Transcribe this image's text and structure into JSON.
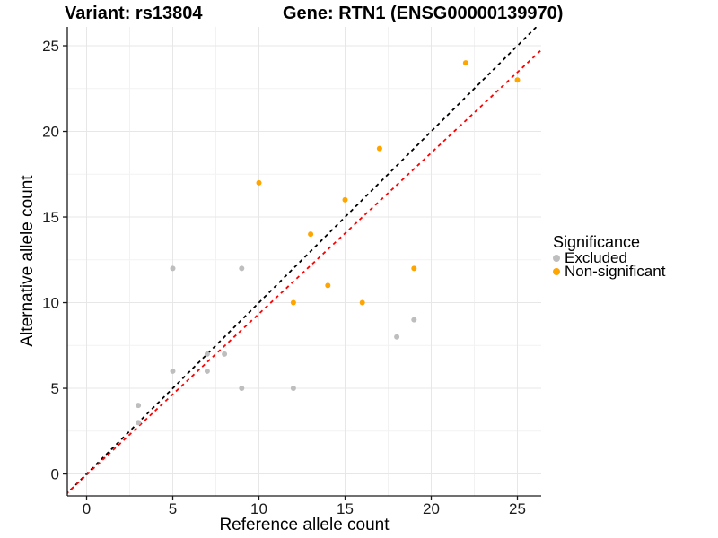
{
  "chart_data": {
    "type": "scatter",
    "title_left": "Variant: rs13804",
    "title_right": "Gene: RTN1 (ENSG00000139970)",
    "xlabel": "Reference allele count",
    "ylabel": "Alternative allele count",
    "x_ticks": [
      0,
      5,
      10,
      15,
      20,
      25
    ],
    "y_ticks": [
      0,
      5,
      10,
      15,
      20,
      25
    ],
    "x_minor_ticks": [
      2.5,
      7.5,
      12.5,
      17.5,
      22.5
    ],
    "y_minor_ticks": [
      2.5,
      7.5,
      12.5,
      17.5,
      22.5
    ],
    "xlim": [
      -1.12,
      26.38
    ],
    "ylim": [
      -1.28,
      26.1
    ],
    "grid": true,
    "legend": {
      "title": "Significance",
      "position": "right",
      "items": [
        {
          "label": "Excluded",
          "color": "#BEBEBE"
        },
        {
          "label": "Non-significant",
          "color": "#FFA500"
        }
      ]
    },
    "series": [
      {
        "name": "Excluded",
        "color": "#BEBEBE",
        "points": [
          [
            3,
            3
          ],
          [
            3,
            4
          ],
          [
            5,
            6
          ],
          [
            5,
            12
          ],
          [
            7,
            6
          ],
          [
            7,
            7
          ],
          [
            8,
            7
          ],
          [
            9,
            5
          ],
          [
            9,
            12
          ],
          [
            12,
            5
          ],
          [
            18,
            8
          ],
          [
            19,
            9
          ]
        ]
      },
      {
        "name": "Non-significant",
        "color": "#FFA500",
        "points": [
          [
            10,
            17
          ],
          [
            12,
            10
          ],
          [
            13,
            14
          ],
          [
            14,
            11
          ],
          [
            15,
            16
          ],
          [
            16,
            10
          ],
          [
            17,
            19
          ],
          [
            19,
            12
          ],
          [
            22,
            24
          ],
          [
            25,
            23
          ]
        ]
      }
    ],
    "lines": [
      {
        "name": "identity-line",
        "slope": 1,
        "intercept": 0,
        "color": "#000000",
        "dash": "4,4"
      },
      {
        "name": "fit-line",
        "slope": 0.94,
        "intercept": -0.05,
        "color": "#FF0000",
        "dash": "4,4"
      }
    ],
    "style": {
      "grid_major_color": "#E7E7E7",
      "grid_minor_color": "#F2F2F2",
      "axis_color": "#1A1A1A",
      "tick_label_color": "#1A1A1A",
      "point_radius": 3
    }
  }
}
